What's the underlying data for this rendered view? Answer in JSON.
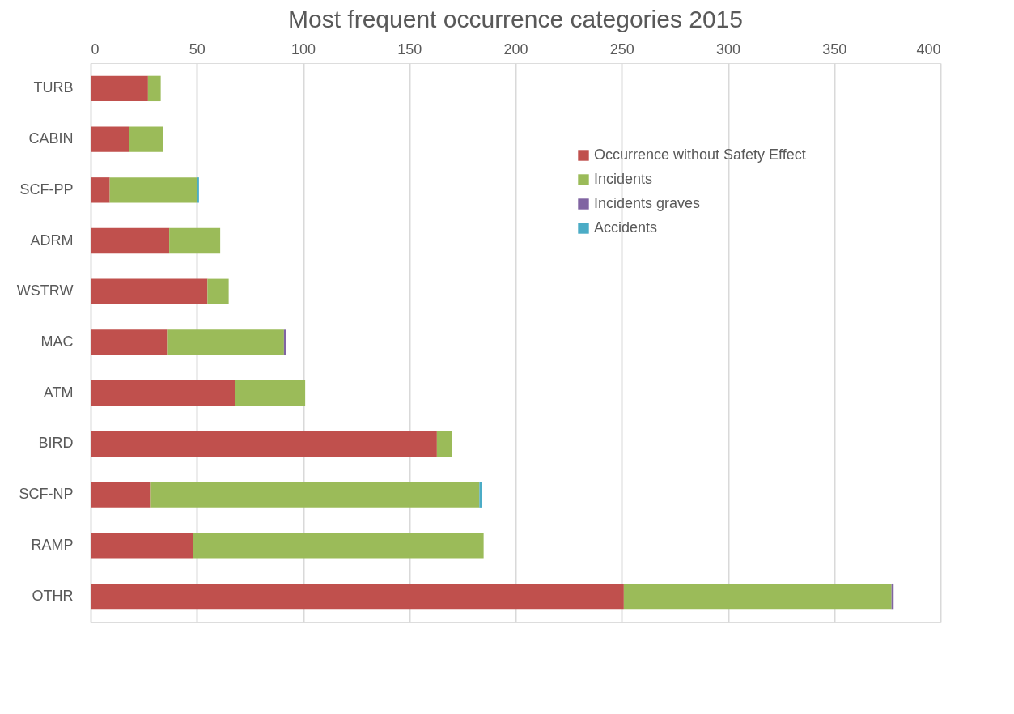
{
  "chart_data": {
    "type": "bar",
    "orientation": "horizontal",
    "stacked": true,
    "title": "Most frequent occurrence categories 2015",
    "categories": [
      "TURB",
      "CABIN",
      "SCF-PP",
      "ADRM",
      "WSTRW",
      "MAC",
      "ATM",
      "BIRD",
      "SCF-NP",
      "RAMP",
      "OTHR"
    ],
    "series": [
      {
        "name": "Occurrence without Safety Effect",
        "color": "#c0504d",
        "values": [
          27,
          18,
          9,
          37,
          55,
          36,
          68,
          163,
          28,
          48,
          251
        ]
      },
      {
        "name": "Incidents",
        "color": "#9bbb59",
        "values": [
          6,
          16,
          41,
          24,
          10,
          55,
          33,
          7,
          155,
          137,
          126
        ]
      },
      {
        "name": "Incidents graves",
        "color": "#8064a2",
        "values": [
          0,
          0,
          0,
          0,
          0,
          1,
          0,
          0,
          0,
          0,
          1
        ]
      },
      {
        "name": "Accidents",
        "color": "#4bacc6",
        "values": [
          0,
          0,
          1,
          0,
          0,
          0,
          0,
          0,
          1,
          0,
          0
        ]
      }
    ],
    "xlim": [
      0,
      400
    ],
    "xticks": [
      0,
      50,
      100,
      150,
      200,
      250,
      300,
      350,
      400
    ],
    "grid": "x",
    "legend": "top right"
  }
}
